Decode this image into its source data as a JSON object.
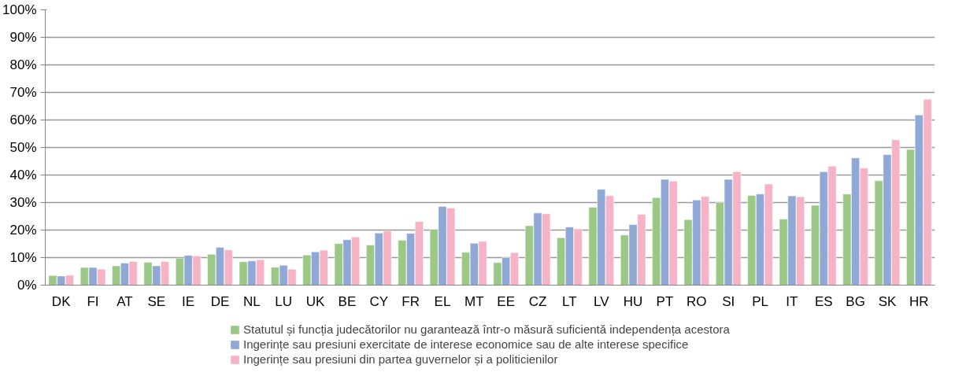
{
  "chart_data": {
    "type": "bar",
    "categories": [
      "DK",
      "FI",
      "AT",
      "SE",
      "IE",
      "DE",
      "NL",
      "LU",
      "UK",
      "BE",
      "CY",
      "FR",
      "EL",
      "MT",
      "EE",
      "CZ",
      "LT",
      "LV",
      "HU",
      "PT",
      "RO",
      "SI",
      "PL",
      "IT",
      "ES",
      "BG",
      "SK",
      "HR"
    ],
    "series": [
      {
        "name": "Statutul și funcția judecătorilor nu garantează într-o măsură suficientă independența acestora",
        "color": "#9bc985",
        "values": [
          3.5,
          6.4,
          7,
          8.3,
          9.8,
          11.2,
          8.5,
          6.5,
          10.9,
          15.1,
          14.6,
          16.3,
          20.3,
          11.9,
          8.2,
          21.6,
          17.2,
          28.3,
          18.2,
          31.8,
          23.8,
          30,
          32.6,
          24,
          29,
          33.1,
          37.9,
          49.3
        ]
      },
      {
        "name": "Ingerințe sau presiuni exercitate de interese economice sau de alte interese specifice",
        "color": "#8fa8d5",
        "values": [
          3.3,
          6.4,
          8,
          7,
          10.8,
          13.7,
          8.8,
          7.2,
          12.1,
          16.5,
          18.9,
          18.8,
          28.6,
          15.2,
          10,
          26.2,
          21.1,
          34.8,
          22,
          38.4,
          30.9,
          38.4,
          33.1,
          32.4,
          41.2,
          46.2,
          47.4,
          61.8
        ]
      },
      {
        "name": "Ingerințe sau presiuni din partea guvernelor și a politicienilor",
        "color": "#f5b3c5",
        "values": [
          3.6,
          5.8,
          8.6,
          8.6,
          10.6,
          12.8,
          9.2,
          5.8,
          12.7,
          17.5,
          19.7,
          23.1,
          28,
          15.9,
          11.8,
          25.9,
          20.4,
          32.5,
          25.7,
          37.8,
          32.2,
          41.2,
          36.7,
          32.1,
          43.2,
          42.5,
          52.8,
          67.5
        ]
      }
    ],
    "ylim": [
      0,
      100
    ],
    "yticks": [
      {
        "value": 0,
        "label": "0%"
      },
      {
        "value": 10,
        "label": "10%"
      },
      {
        "value": 20,
        "label": "20%"
      },
      {
        "value": 30,
        "label": "30%"
      },
      {
        "value": 40,
        "label": "40%"
      },
      {
        "value": 50,
        "label": "50%"
      },
      {
        "value": 60,
        "label": "60%"
      },
      {
        "value": 70,
        "label": "70%"
      },
      {
        "value": 80,
        "label": "80%"
      },
      {
        "value": 90,
        "label": "90%"
      },
      {
        "value": 100,
        "label": "100%"
      }
    ],
    "grid": "y",
    "legend": "bottom"
  }
}
